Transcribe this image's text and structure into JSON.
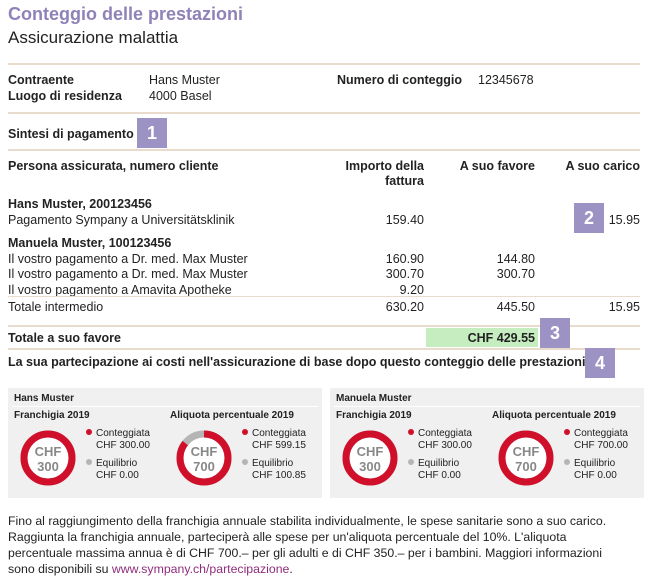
{
  "header": {
    "title": "Conteggio delle prestazioni",
    "subtitle": "Assicurazione malattia"
  },
  "info": {
    "policyholder_label": "Contraente",
    "policyholder_value": "Hans Muster",
    "residence_label": "Luogo di residenza",
    "residence_value": "4000 Basel",
    "statement_label": "Numero di conteggio",
    "statement_value": "12345678"
  },
  "summary": {
    "heading": "Sintesi di pagamento",
    "badges": [
      "1",
      "2",
      "3",
      "4"
    ],
    "col_person": "Persona assicurata, numero cliente",
    "col_invoice_1": "Importo della",
    "col_invoice_2": "fattura",
    "col_favor": "A suo favore",
    "col_charge": "A suo carico",
    "p1_name": "Hans Muster, 200123456",
    "p1_rows": [
      {
        "desc": "Pagamento Sympany a Universitätsklinik",
        "invoice": "159.40",
        "favor": "",
        "charge": "15.95"
      }
    ],
    "p2_name": "Manuela Muster, 100123456",
    "p2_rows": [
      {
        "desc": "Il vostro pagamento a Dr. med. Max Muster",
        "invoice": "160.90",
        "favor": "144.80",
        "charge": ""
      },
      {
        "desc": "Il vostro pagamento a Dr. med. Max Muster",
        "invoice": "300.70",
        "favor": "300.70",
        "charge": ""
      },
      {
        "desc": "Il vostro pagamento a Amavita Apotheke",
        "invoice": "9.20",
        "favor": "",
        "charge": ""
      }
    ],
    "subtotal": {
      "label": "Totale intermedio",
      "invoice": "630.20",
      "favor": "445.50",
      "charge": "15.95"
    },
    "total_label": "Totale a suo favore",
    "total_value": "CHF 429.55",
    "participation_heading": "La sua partecipazione ai costi nell'assicurazione di base dopo questo conteggio delle prestazioni"
  },
  "panels": [
    {
      "name": "Hans Muster",
      "franchise": {
        "title": "Franchigia 2019",
        "chf": "CHF",
        "amount": "300",
        "fraction": 1.0,
        "billed_label": "Conteggiata",
        "billed_value": "CHF 300.00",
        "balance_label": "Equilibrio",
        "balance_value": "CHF 0.00"
      },
      "rate": {
        "title": "Aliquota percentuale 2019",
        "chf": "CHF",
        "amount": "700",
        "fraction": 0.856,
        "billed_label": "Conteggiata",
        "billed_value": "CHF 599.15",
        "balance_label": "Equilibrio",
        "balance_value": "CHF 100.85"
      }
    },
    {
      "name": "Manuela Muster",
      "franchise": {
        "title": "Franchigia 2019",
        "chf": "CHF",
        "amount": "300",
        "fraction": 1.0,
        "billed_label": "Conteggiata",
        "billed_value": "CHF 300.00",
        "balance_label": "Equilibrio",
        "balance_value": "CHF 0.00"
      },
      "rate": {
        "title": "Aliquota percentuale 2019",
        "chf": "CHF",
        "amount": "700",
        "fraction": 1.0,
        "billed_label": "Conteggiata",
        "billed_value": "CHF 700.00",
        "balance_label": "Equilibrio",
        "balance_value": "CHF 0.00"
      }
    }
  ],
  "colors": {
    "accent": "#8f82b8",
    "red": "#d0102a",
    "grey": "#b5b5b5",
    "green": "#c5edc0"
  },
  "footer": {
    "line1": "Fino al raggiungimento della franchigia annuale stabilita individualmente, le spese sanitarie sono a suo carico.",
    "line2": "Raggiunta la franchigia annuale, parteciperà alle spese per un'aliquota percentuale del 10%. L'aliquota",
    "line3": "percentuale massima annua è di CHF 700.– per gli adulti e di CHF 350.– per i bambini. Maggiori informazioni",
    "line4_prefix": "sono disponibili su ",
    "link": "www.sympany.ch/partecipazione",
    "line4_suffix": "."
  }
}
